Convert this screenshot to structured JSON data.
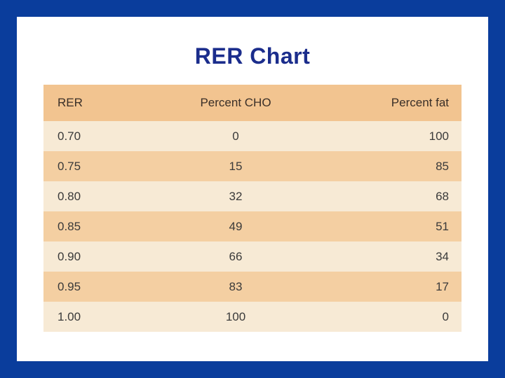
{
  "title": "RER Chart",
  "table": {
    "headers": [
      "RER",
      "Percent CHO",
      "Percent fat"
    ],
    "rows": [
      [
        "0.70",
        "0",
        "100"
      ],
      [
        "0.75",
        "15",
        "85"
      ],
      [
        "0.80",
        "32",
        "68"
      ],
      [
        "0.85",
        "49",
        "51"
      ],
      [
        "0.90",
        "66",
        "34"
      ],
      [
        "0.95",
        "83",
        "17"
      ],
      [
        "1.00",
        "100",
        "0"
      ]
    ]
  },
  "colors": {
    "frame": "#0a3d9c",
    "title": "#1b2d8c",
    "header_bg": "#f2c490",
    "row_light": "#f7ead5",
    "row_dark": "#f4cfa2"
  }
}
